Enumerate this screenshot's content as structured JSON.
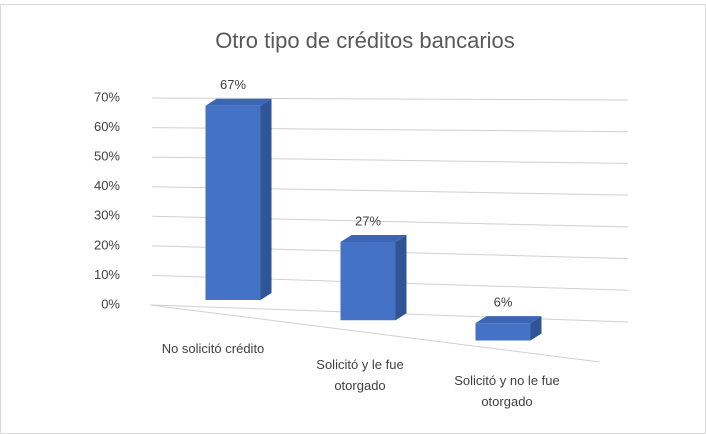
{
  "chart_data": {
    "type": "bar3d",
    "title": "Otro tipo de créditos bancarios",
    "categories": [
      "No solicitó crédito",
      "Solicitó y le fue otorgado",
      "Solicitó y no le fue otorgado"
    ],
    "values": [
      67,
      27,
      6
    ],
    "value_labels": [
      "67%",
      "27%",
      "6%"
    ],
    "color": "#4472c4",
    "ylim": [
      0,
      70
    ],
    "yticks": [
      {
        "value": 0,
        "label": "0%"
      },
      {
        "value": 10,
        "label": "10%"
      },
      {
        "value": 20,
        "label": "20%"
      },
      {
        "value": 30,
        "label": "30%"
      },
      {
        "value": 40,
        "label": "40%"
      },
      {
        "value": 50,
        "label": "50%"
      },
      {
        "value": 60,
        "label": "60%"
      },
      {
        "value": 70,
        "label": "70%"
      }
    ],
    "grid": true
  }
}
